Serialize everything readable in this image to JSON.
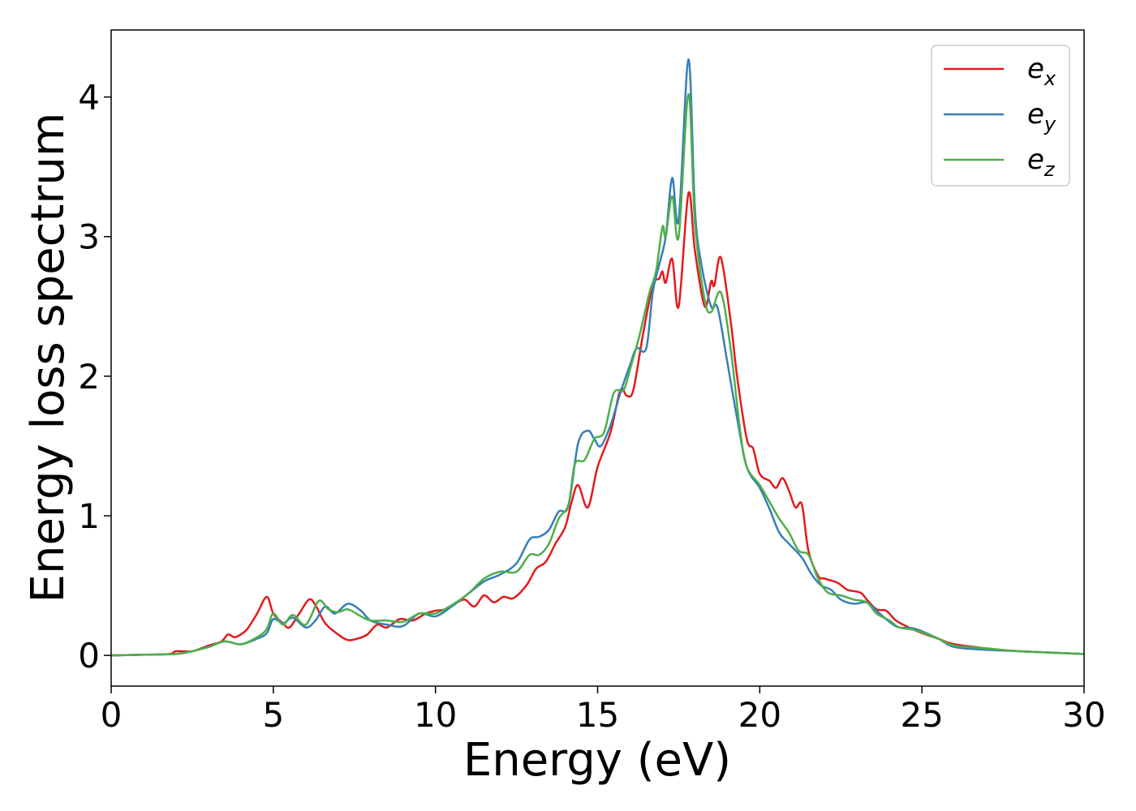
{
  "chart_data": {
    "type": "line",
    "xlabel": "Energy (eV)",
    "ylabel": "Energy loss spectrum",
    "xlim": [
      0,
      30
    ],
    "ylim": [
      -0.22,
      4.48
    ],
    "xticks": [
      0,
      5,
      10,
      15,
      20,
      25,
      30
    ],
    "yticks": [
      0,
      1,
      2,
      3,
      4
    ],
    "grid": false,
    "legend_position": "top-right",
    "legend": [
      {
        "base": "e",
        "sub": "x"
      },
      {
        "base": "e",
        "sub": "y"
      },
      {
        "base": "e",
        "sub": "z"
      }
    ],
    "series": [
      {
        "name": "e_x",
        "color": "#e41a1c",
        "points": [
          [
            0,
            0
          ],
          [
            1,
            0.005
          ],
          [
            1.8,
            0.01
          ],
          [
            2.0,
            0.03
          ],
          [
            2.5,
            0.03
          ],
          [
            3.0,
            0.07
          ],
          [
            3.4,
            0.1
          ],
          [
            3.6,
            0.15
          ],
          [
            3.8,
            0.13
          ],
          [
            4.0,
            0.15
          ],
          [
            4.2,
            0.19
          ],
          [
            4.5,
            0.3
          ],
          [
            4.8,
            0.42
          ],
          [
            5.0,
            0.3
          ],
          [
            5.3,
            0.23
          ],
          [
            5.5,
            0.2
          ],
          [
            5.8,
            0.3
          ],
          [
            6.1,
            0.4
          ],
          [
            6.3,
            0.36
          ],
          [
            6.6,
            0.23
          ],
          [
            7.0,
            0.15
          ],
          [
            7.3,
            0.11
          ],
          [
            7.6,
            0.12
          ],
          [
            7.9,
            0.15
          ],
          [
            8.2,
            0.22
          ],
          [
            8.5,
            0.2
          ],
          [
            8.9,
            0.26
          ],
          [
            9.3,
            0.25
          ],
          [
            9.7,
            0.3
          ],
          [
            10.0,
            0.32
          ],
          [
            10.3,
            0.33
          ],
          [
            10.6,
            0.37
          ],
          [
            10.9,
            0.4
          ],
          [
            11.2,
            0.35
          ],
          [
            11.5,
            0.43
          ],
          [
            11.8,
            0.38
          ],
          [
            12.1,
            0.42
          ],
          [
            12.4,
            0.41
          ],
          [
            12.8,
            0.5
          ],
          [
            13.1,
            0.62
          ],
          [
            13.4,
            0.67
          ],
          [
            13.7,
            0.8
          ],
          [
            14.0,
            0.92
          ],
          [
            14.2,
            1.1
          ],
          [
            14.4,
            1.22
          ],
          [
            14.7,
            1.06
          ],
          [
            15.0,
            1.35
          ],
          [
            15.4,
            1.6
          ],
          [
            15.7,
            1.9
          ],
          [
            15.9,
            1.86
          ],
          [
            16.1,
            1.9
          ],
          [
            16.4,
            2.3
          ],
          [
            16.7,
            2.65
          ],
          [
            16.9,
            2.7
          ],
          [
            17.0,
            2.75
          ],
          [
            17.1,
            2.67
          ],
          [
            17.3,
            2.84
          ],
          [
            17.5,
            2.5
          ],
          [
            17.8,
            3.31
          ],
          [
            18.0,
            2.9
          ],
          [
            18.3,
            2.5
          ],
          [
            18.5,
            2.68
          ],
          [
            18.6,
            2.65
          ],
          [
            18.8,
            2.85
          ],
          [
            19.1,
            2.4
          ],
          [
            19.3,
            2.0
          ],
          [
            19.6,
            1.55
          ],
          [
            19.8,
            1.48
          ],
          [
            20.0,
            1.3
          ],
          [
            20.3,
            1.25
          ],
          [
            20.5,
            1.2
          ],
          [
            20.7,
            1.27
          ],
          [
            20.9,
            1.18
          ],
          [
            21.1,
            1.06
          ],
          [
            21.3,
            1.08
          ],
          [
            21.5,
            0.75
          ],
          [
            21.8,
            0.57
          ],
          [
            22.0,
            0.55
          ],
          [
            22.4,
            0.52
          ],
          [
            22.7,
            0.47
          ],
          [
            23.1,
            0.45
          ],
          [
            23.3,
            0.4
          ],
          [
            23.6,
            0.33
          ],
          [
            23.9,
            0.32
          ],
          [
            24.2,
            0.25
          ],
          [
            24.6,
            0.2
          ],
          [
            25.0,
            0.16
          ],
          [
            25.5,
            0.12
          ],
          [
            26.0,
            0.08
          ],
          [
            27.0,
            0.05
          ],
          [
            28.0,
            0.03
          ],
          [
            30,
            0.01
          ]
        ]
      },
      {
        "name": "e_y",
        "color": "#377eb8",
        "points": [
          [
            0,
            0
          ],
          [
            1,
            0.005
          ],
          [
            2.0,
            0.01
          ],
          [
            2.5,
            0.03
          ],
          [
            3.0,
            0.06
          ],
          [
            3.5,
            0.1
          ],
          [
            4.0,
            0.08
          ],
          [
            4.5,
            0.12
          ],
          [
            4.8,
            0.16
          ],
          [
            5.0,
            0.26
          ],
          [
            5.3,
            0.23
          ],
          [
            5.6,
            0.27
          ],
          [
            6.0,
            0.2
          ],
          [
            6.3,
            0.25
          ],
          [
            6.6,
            0.35
          ],
          [
            6.9,
            0.3
          ],
          [
            7.3,
            0.37
          ],
          [
            7.7,
            0.32
          ],
          [
            8.0,
            0.25
          ],
          [
            8.5,
            0.22
          ],
          [
            9.0,
            0.21
          ],
          [
            9.5,
            0.3
          ],
          [
            10.0,
            0.28
          ],
          [
            10.5,
            0.35
          ],
          [
            11.0,
            0.44
          ],
          [
            11.5,
            0.53
          ],
          [
            12.0,
            0.58
          ],
          [
            12.5,
            0.66
          ],
          [
            12.9,
            0.83
          ],
          [
            13.2,
            0.85
          ],
          [
            13.5,
            0.9
          ],
          [
            13.8,
            1.03
          ],
          [
            14.1,
            1.07
          ],
          [
            14.4,
            1.52
          ],
          [
            14.7,
            1.61
          ],
          [
            14.9,
            1.55
          ],
          [
            15.1,
            1.5
          ],
          [
            15.4,
            1.65
          ],
          [
            15.7,
            1.88
          ],
          [
            16.0,
            2.08
          ],
          [
            16.2,
            2.2
          ],
          [
            16.5,
            2.2
          ],
          [
            16.7,
            2.6
          ],
          [
            16.9,
            2.8
          ],
          [
            17.1,
            3.0
          ],
          [
            17.3,
            3.42
          ],
          [
            17.5,
            3.12
          ],
          [
            17.8,
            4.27
          ],
          [
            18.0,
            3.2
          ],
          [
            18.2,
            2.8
          ],
          [
            18.5,
            2.5
          ],
          [
            18.7,
            2.49
          ],
          [
            19.0,
            2.1
          ],
          [
            19.3,
            1.7
          ],
          [
            19.6,
            1.35
          ],
          [
            20.0,
            1.2
          ],
          [
            20.3,
            1.05
          ],
          [
            20.6,
            0.88
          ],
          [
            20.9,
            0.8
          ],
          [
            21.3,
            0.7
          ],
          [
            21.6,
            0.58
          ],
          [
            21.9,
            0.5
          ],
          [
            22.2,
            0.47
          ],
          [
            22.5,
            0.4
          ],
          [
            22.9,
            0.37
          ],
          [
            23.3,
            0.38
          ],
          [
            23.6,
            0.32
          ],
          [
            24.0,
            0.24
          ],
          [
            24.3,
            0.2
          ],
          [
            24.8,
            0.19
          ],
          [
            25.5,
            0.12
          ],
          [
            26.0,
            0.06
          ],
          [
            27.0,
            0.04
          ],
          [
            28.0,
            0.03
          ],
          [
            30,
            0.01
          ]
        ]
      },
      {
        "name": "e_z",
        "color": "#4daf4a",
        "points": [
          [
            0,
            0
          ],
          [
            1,
            0.005
          ],
          [
            2.0,
            0.01
          ],
          [
            2.5,
            0.03
          ],
          [
            3.0,
            0.06
          ],
          [
            3.5,
            0.1
          ],
          [
            4.0,
            0.08
          ],
          [
            4.5,
            0.13
          ],
          [
            4.8,
            0.19
          ],
          [
            5.0,
            0.3
          ],
          [
            5.3,
            0.22
          ],
          [
            5.6,
            0.29
          ],
          [
            6.0,
            0.22
          ],
          [
            6.4,
            0.39
          ],
          [
            6.7,
            0.33
          ],
          [
            7.0,
            0.31
          ],
          [
            7.3,
            0.33
          ],
          [
            7.7,
            0.28
          ],
          [
            8.0,
            0.25
          ],
          [
            8.5,
            0.25
          ],
          [
            9.0,
            0.24
          ],
          [
            9.5,
            0.3
          ],
          [
            10.0,
            0.3
          ],
          [
            10.5,
            0.36
          ],
          [
            11.0,
            0.44
          ],
          [
            11.5,
            0.55
          ],
          [
            12.0,
            0.6
          ],
          [
            12.5,
            0.6
          ],
          [
            12.9,
            0.72
          ],
          [
            13.2,
            0.72
          ],
          [
            13.5,
            0.8
          ],
          [
            13.8,
            0.98
          ],
          [
            14.1,
            1.08
          ],
          [
            14.3,
            1.37
          ],
          [
            14.6,
            1.4
          ],
          [
            14.9,
            1.55
          ],
          [
            15.2,
            1.6
          ],
          [
            15.5,
            1.88
          ],
          [
            15.8,
            1.9
          ],
          [
            16.0,
            2.05
          ],
          [
            16.3,
            2.3
          ],
          [
            16.6,
            2.6
          ],
          [
            16.8,
            2.75
          ],
          [
            17.0,
            3.07
          ],
          [
            17.1,
            3.0
          ],
          [
            17.3,
            3.29
          ],
          [
            17.5,
            3.0
          ],
          [
            17.8,
            4.02
          ],
          [
            18.0,
            3.1
          ],
          [
            18.3,
            2.55
          ],
          [
            18.5,
            2.46
          ],
          [
            18.8,
            2.6
          ],
          [
            19.1,
            2.2
          ],
          [
            19.4,
            1.6
          ],
          [
            19.6,
            1.35
          ],
          [
            20.0,
            1.22
          ],
          [
            20.3,
            1.1
          ],
          [
            20.6,
            0.98
          ],
          [
            20.9,
            0.88
          ],
          [
            21.2,
            0.75
          ],
          [
            21.5,
            0.72
          ],
          [
            21.8,
            0.55
          ],
          [
            22.1,
            0.45
          ],
          [
            22.5,
            0.43
          ],
          [
            22.9,
            0.4
          ],
          [
            23.3,
            0.38
          ],
          [
            23.6,
            0.3
          ],
          [
            24.0,
            0.25
          ],
          [
            24.3,
            0.2
          ],
          [
            24.8,
            0.18
          ],
          [
            25.5,
            0.12
          ],
          [
            26.0,
            0.07
          ],
          [
            27.0,
            0.05
          ],
          [
            28.0,
            0.03
          ],
          [
            30,
            0.01
          ]
        ]
      }
    ]
  }
}
